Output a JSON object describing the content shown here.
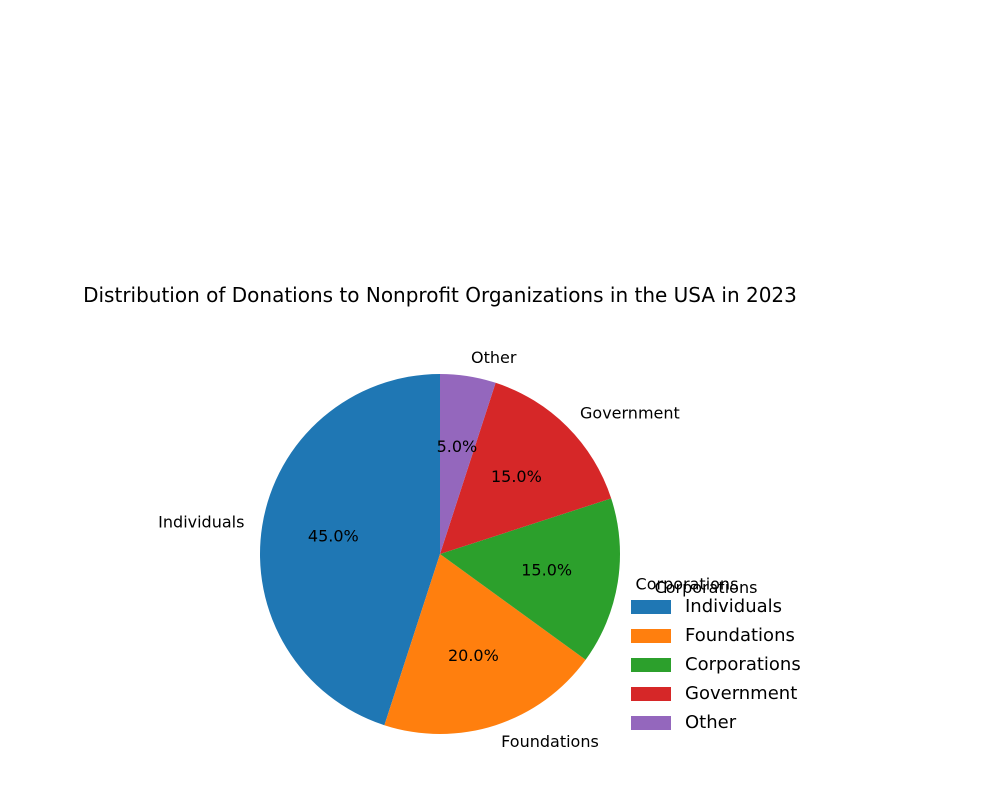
{
  "chart_data": {
    "type": "pie",
    "title": "Distribution of Donations to Nonprofit Organizations in the USA in 2023",
    "categories": [
      "Individuals",
      "Foundations",
      "Corporations",
      "Government",
      "Other"
    ],
    "values": [
      45.0,
      20.0,
      15.0,
      15.0,
      5.0
    ],
    "percent_labels": [
      "45.0%",
      "20.0%",
      "15.0%",
      "15.0%",
      "5.0%"
    ],
    "colors": [
      "#1f77b4",
      "#ff7f0e",
      "#2ca02c",
      "#d62728",
      "#9467bd"
    ],
    "start_angle_deg": 90,
    "direction": "counterclockwise",
    "legend": {
      "title": "Corporations",
      "placement": "lower-right",
      "entries": [
        "Individuals",
        "Foundations",
        "Corporations",
        "Government",
        "Other"
      ]
    }
  }
}
